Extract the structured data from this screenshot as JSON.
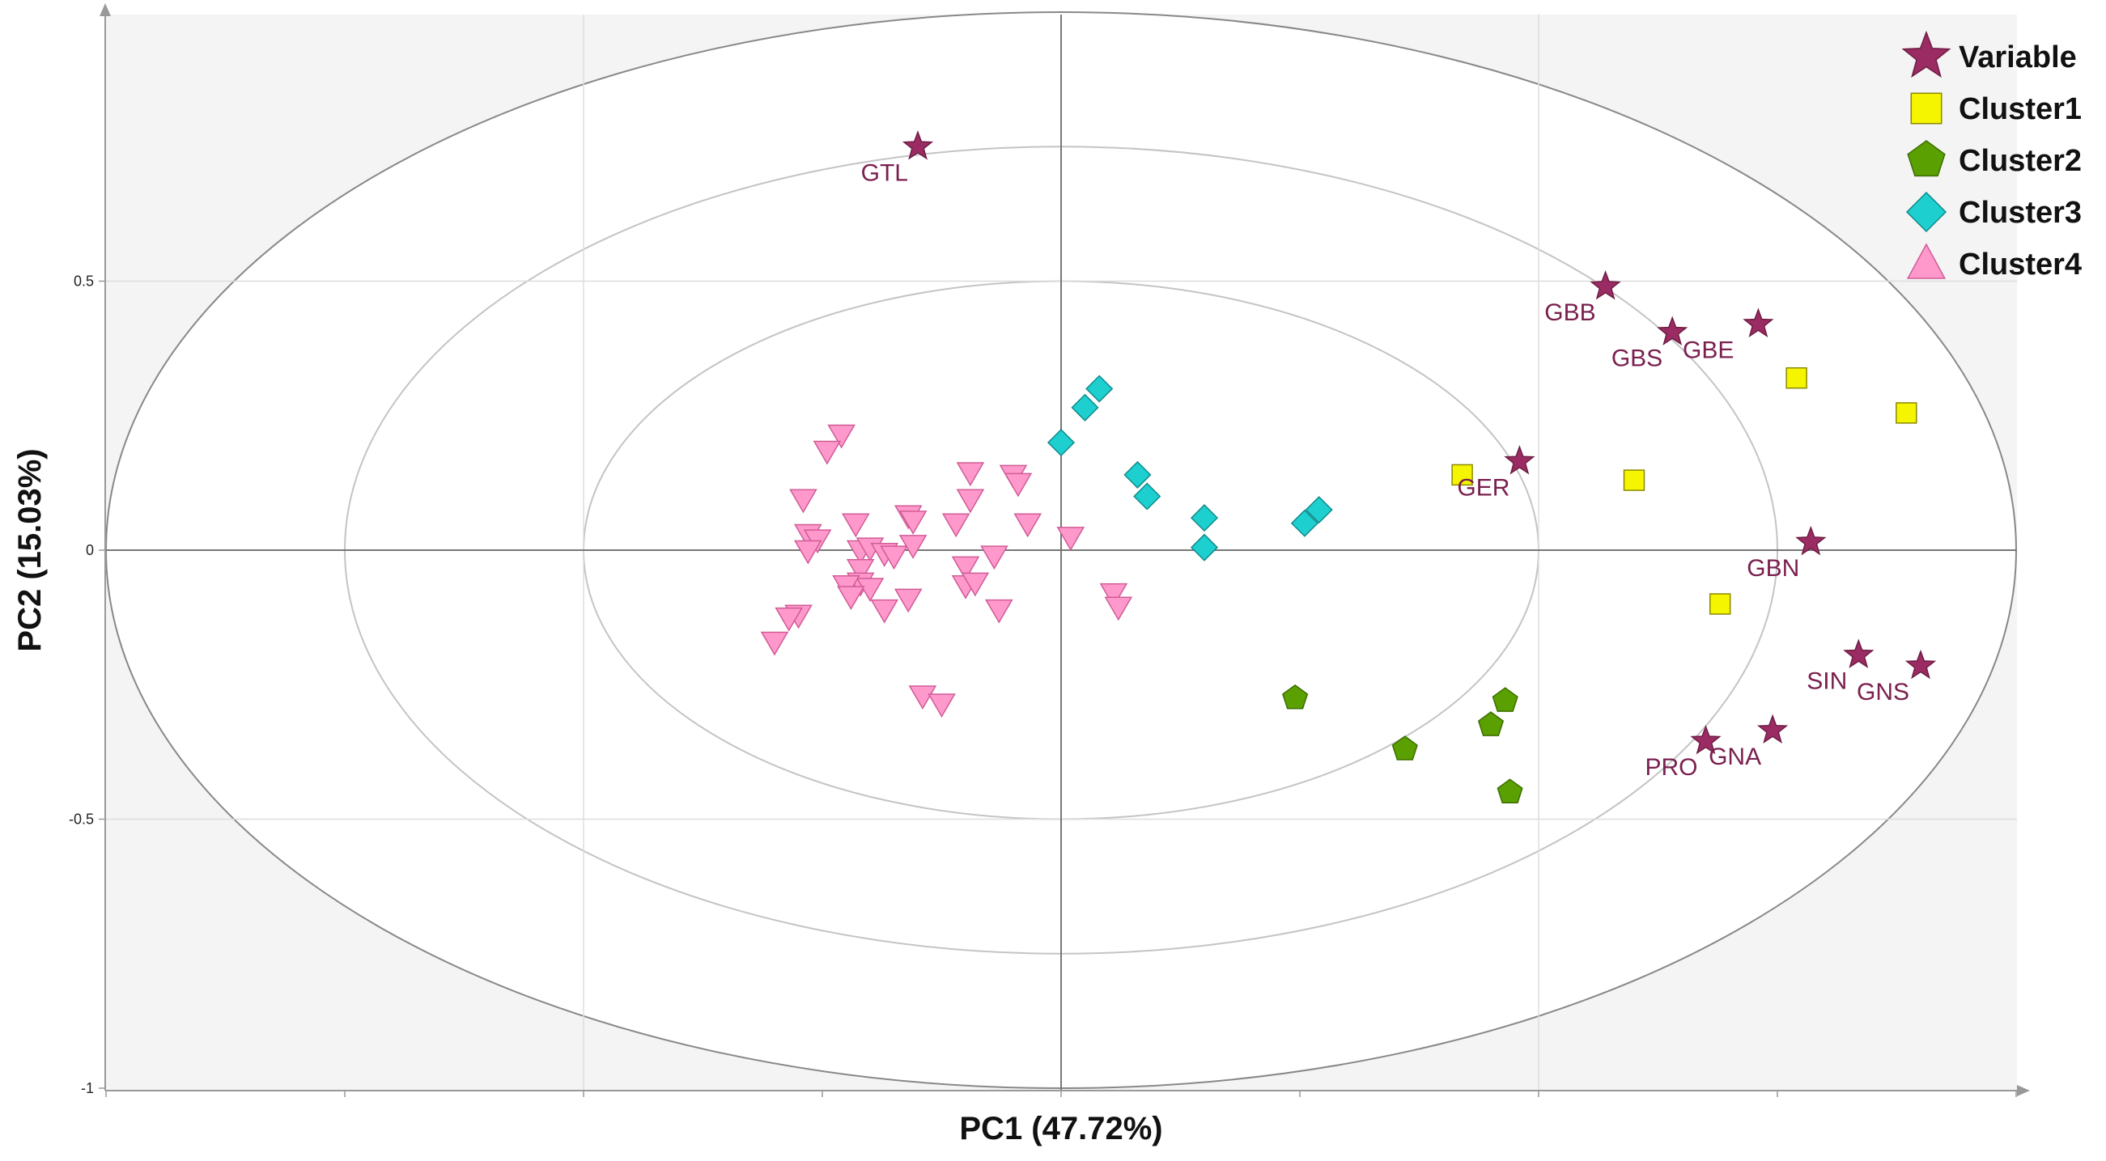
{
  "chart_data": {
    "type": "scatter",
    "xlabel": "PC1 (47.72%)",
    "ylabel": "PC2 (15.03%)",
    "xlim": [
      -1,
      1
    ],
    "ylim": [
      -1,
      1
    ],
    "y_ticks": [
      {
        "value": 0.5,
        "label": "0.5"
      },
      {
        "value": 0,
        "label": "0"
      },
      {
        "value": -0.5,
        "label": "-0.5"
      },
      {
        "value": -1,
        "label": "-1"
      }
    ],
    "x_gridlines": [
      -0.5,
      0,
      0.5
    ],
    "ellipse_radii": [
      0.5,
      0.75,
      1.0
    ],
    "colors": {
      "Variable": "#9b2c63",
      "Cluster1": "#f5f500",
      "Cluster2": "#5aa000",
      "Cluster3": "#1ecfcf",
      "Cluster4": "#ff99cc"
    },
    "legend": {
      "position": "top-right",
      "entries": [
        {
          "key": "Variable",
          "label": "Variable",
          "marker": "star"
        },
        {
          "key": "Cluster1",
          "label": "Cluster1",
          "marker": "square"
        },
        {
          "key": "Cluster2",
          "label": "Cluster2",
          "marker": "pentagon"
        },
        {
          "key": "Cluster3",
          "label": "Cluster3",
          "marker": "diamond"
        },
        {
          "key": "Cluster4",
          "label": "Cluster4",
          "marker": "triangle"
        }
      ]
    },
    "variables": [
      {
        "label": "GTL",
        "x": -0.15,
        "y": 0.75
      },
      {
        "label": "GBB",
        "x": 0.57,
        "y": 0.49
      },
      {
        "label": "GBS",
        "x": 0.64,
        "y": 0.405
      },
      {
        "label": "GBE",
        "x": 0.73,
        "y": 0.42
      },
      {
        "label": "GER",
        "x": 0.48,
        "y": 0.165
      },
      {
        "label": "GBN",
        "x": 0.785,
        "y": 0.015
      },
      {
        "label": "SIN",
        "x": 0.835,
        "y": -0.195
      },
      {
        "label": "GNS",
        "x": 0.9,
        "y": -0.215
      },
      {
        "label": "PRO",
        "x": 0.675,
        "y": -0.355
      },
      {
        "label": "GNA",
        "x": 0.745,
        "y": -0.335
      }
    ],
    "series": [
      {
        "key": "Cluster1",
        "marker": "square",
        "points": [
          [
            0.42,
            0.14
          ],
          [
            0.6,
            0.13
          ],
          [
            0.77,
            0.32
          ],
          [
            0.885,
            0.255
          ],
          [
            0.69,
            -0.1
          ]
        ]
      },
      {
        "key": "Cluster2",
        "marker": "pentagon",
        "points": [
          [
            0.245,
            -0.275
          ],
          [
            0.36,
            -0.37
          ],
          [
            0.45,
            -0.325
          ],
          [
            0.465,
            -0.28
          ],
          [
            0.47,
            -0.45
          ]
        ]
      },
      {
        "key": "Cluster3",
        "marker": "diamond",
        "points": [
          [
            0.04,
            0.3
          ],
          [
            0.025,
            0.265
          ],
          [
            0.0,
            0.2
          ],
          [
            0.08,
            0.14
          ],
          [
            0.09,
            0.1
          ],
          [
            0.15,
            0.06
          ],
          [
            0.15,
            0.005
          ],
          [
            0.255,
            0.05
          ],
          [
            0.27,
            0.075
          ]
        ]
      },
      {
        "key": "Cluster4",
        "marker": "triangle",
        "points": [
          [
            -0.23,
            0.215
          ],
          [
            -0.245,
            0.185
          ],
          [
            -0.095,
            0.145
          ],
          [
            -0.05,
            0.14
          ],
          [
            -0.045,
            0.125
          ],
          [
            -0.095,
            0.095
          ],
          [
            -0.27,
            0.095
          ],
          [
            -0.16,
            0.065
          ],
          [
            -0.155,
            0.055
          ],
          [
            -0.11,
            0.05
          ],
          [
            -0.035,
            0.05
          ],
          [
            -0.215,
            0.05
          ],
          [
            -0.265,
            0.03
          ],
          [
            -0.255,
            0.02
          ],
          [
            -0.21,
            0.0
          ],
          [
            -0.2,
            0.005
          ],
          [
            -0.185,
            -0.005
          ],
          [
            -0.175,
            -0.01
          ],
          [
            -0.155,
            0.01
          ],
          [
            -0.265,
            0.0
          ],
          [
            -0.07,
            -0.01
          ],
          [
            -0.1,
            -0.03
          ],
          [
            -0.21,
            -0.035
          ],
          [
            -0.21,
            -0.06
          ],
          [
            -0.2,
            -0.07
          ],
          [
            -0.225,
            -0.065
          ],
          [
            -0.1,
            -0.065
          ],
          [
            -0.09,
            -0.06
          ],
          [
            -0.16,
            -0.09
          ],
          [
            -0.22,
            -0.085
          ],
          [
            -0.185,
            -0.11
          ],
          [
            -0.065,
            -0.11
          ],
          [
            0.055,
            -0.08
          ],
          [
            0.06,
            -0.105
          ],
          [
            0.01,
            0.025
          ],
          [
            -0.275,
            -0.12
          ],
          [
            -0.285,
            -0.125
          ],
          [
            -0.3,
            -0.17
          ],
          [
            -0.145,
            -0.27
          ],
          [
            -0.125,
            -0.285
          ]
        ]
      }
    ]
  }
}
